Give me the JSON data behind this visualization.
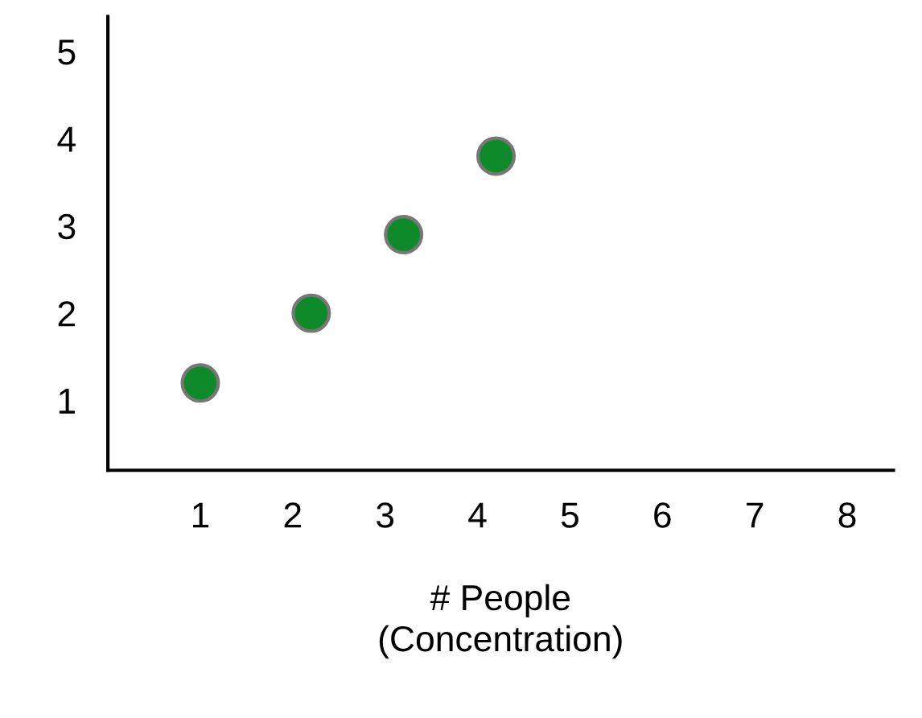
{
  "chart_data": {
    "type": "scatter",
    "xlabel": "# People\n(Concentration)",
    "x": [
      1,
      2.2,
      3.2,
      4.2
    ],
    "values": [
      1.2,
      2.0,
      2.9,
      3.8
    ],
    "color": "#0f8a2a",
    "marker": "circle",
    "xlim": [
      0,
      8.5
    ],
    "xticks": [
      1,
      2,
      3,
      4,
      5,
      6,
      7,
      8
    ],
    "ylim": [
      0.2,
      5.4
    ],
    "yticks": [
      1,
      2,
      3,
      4,
      5
    ],
    "grid": false,
    "legend": false
  }
}
